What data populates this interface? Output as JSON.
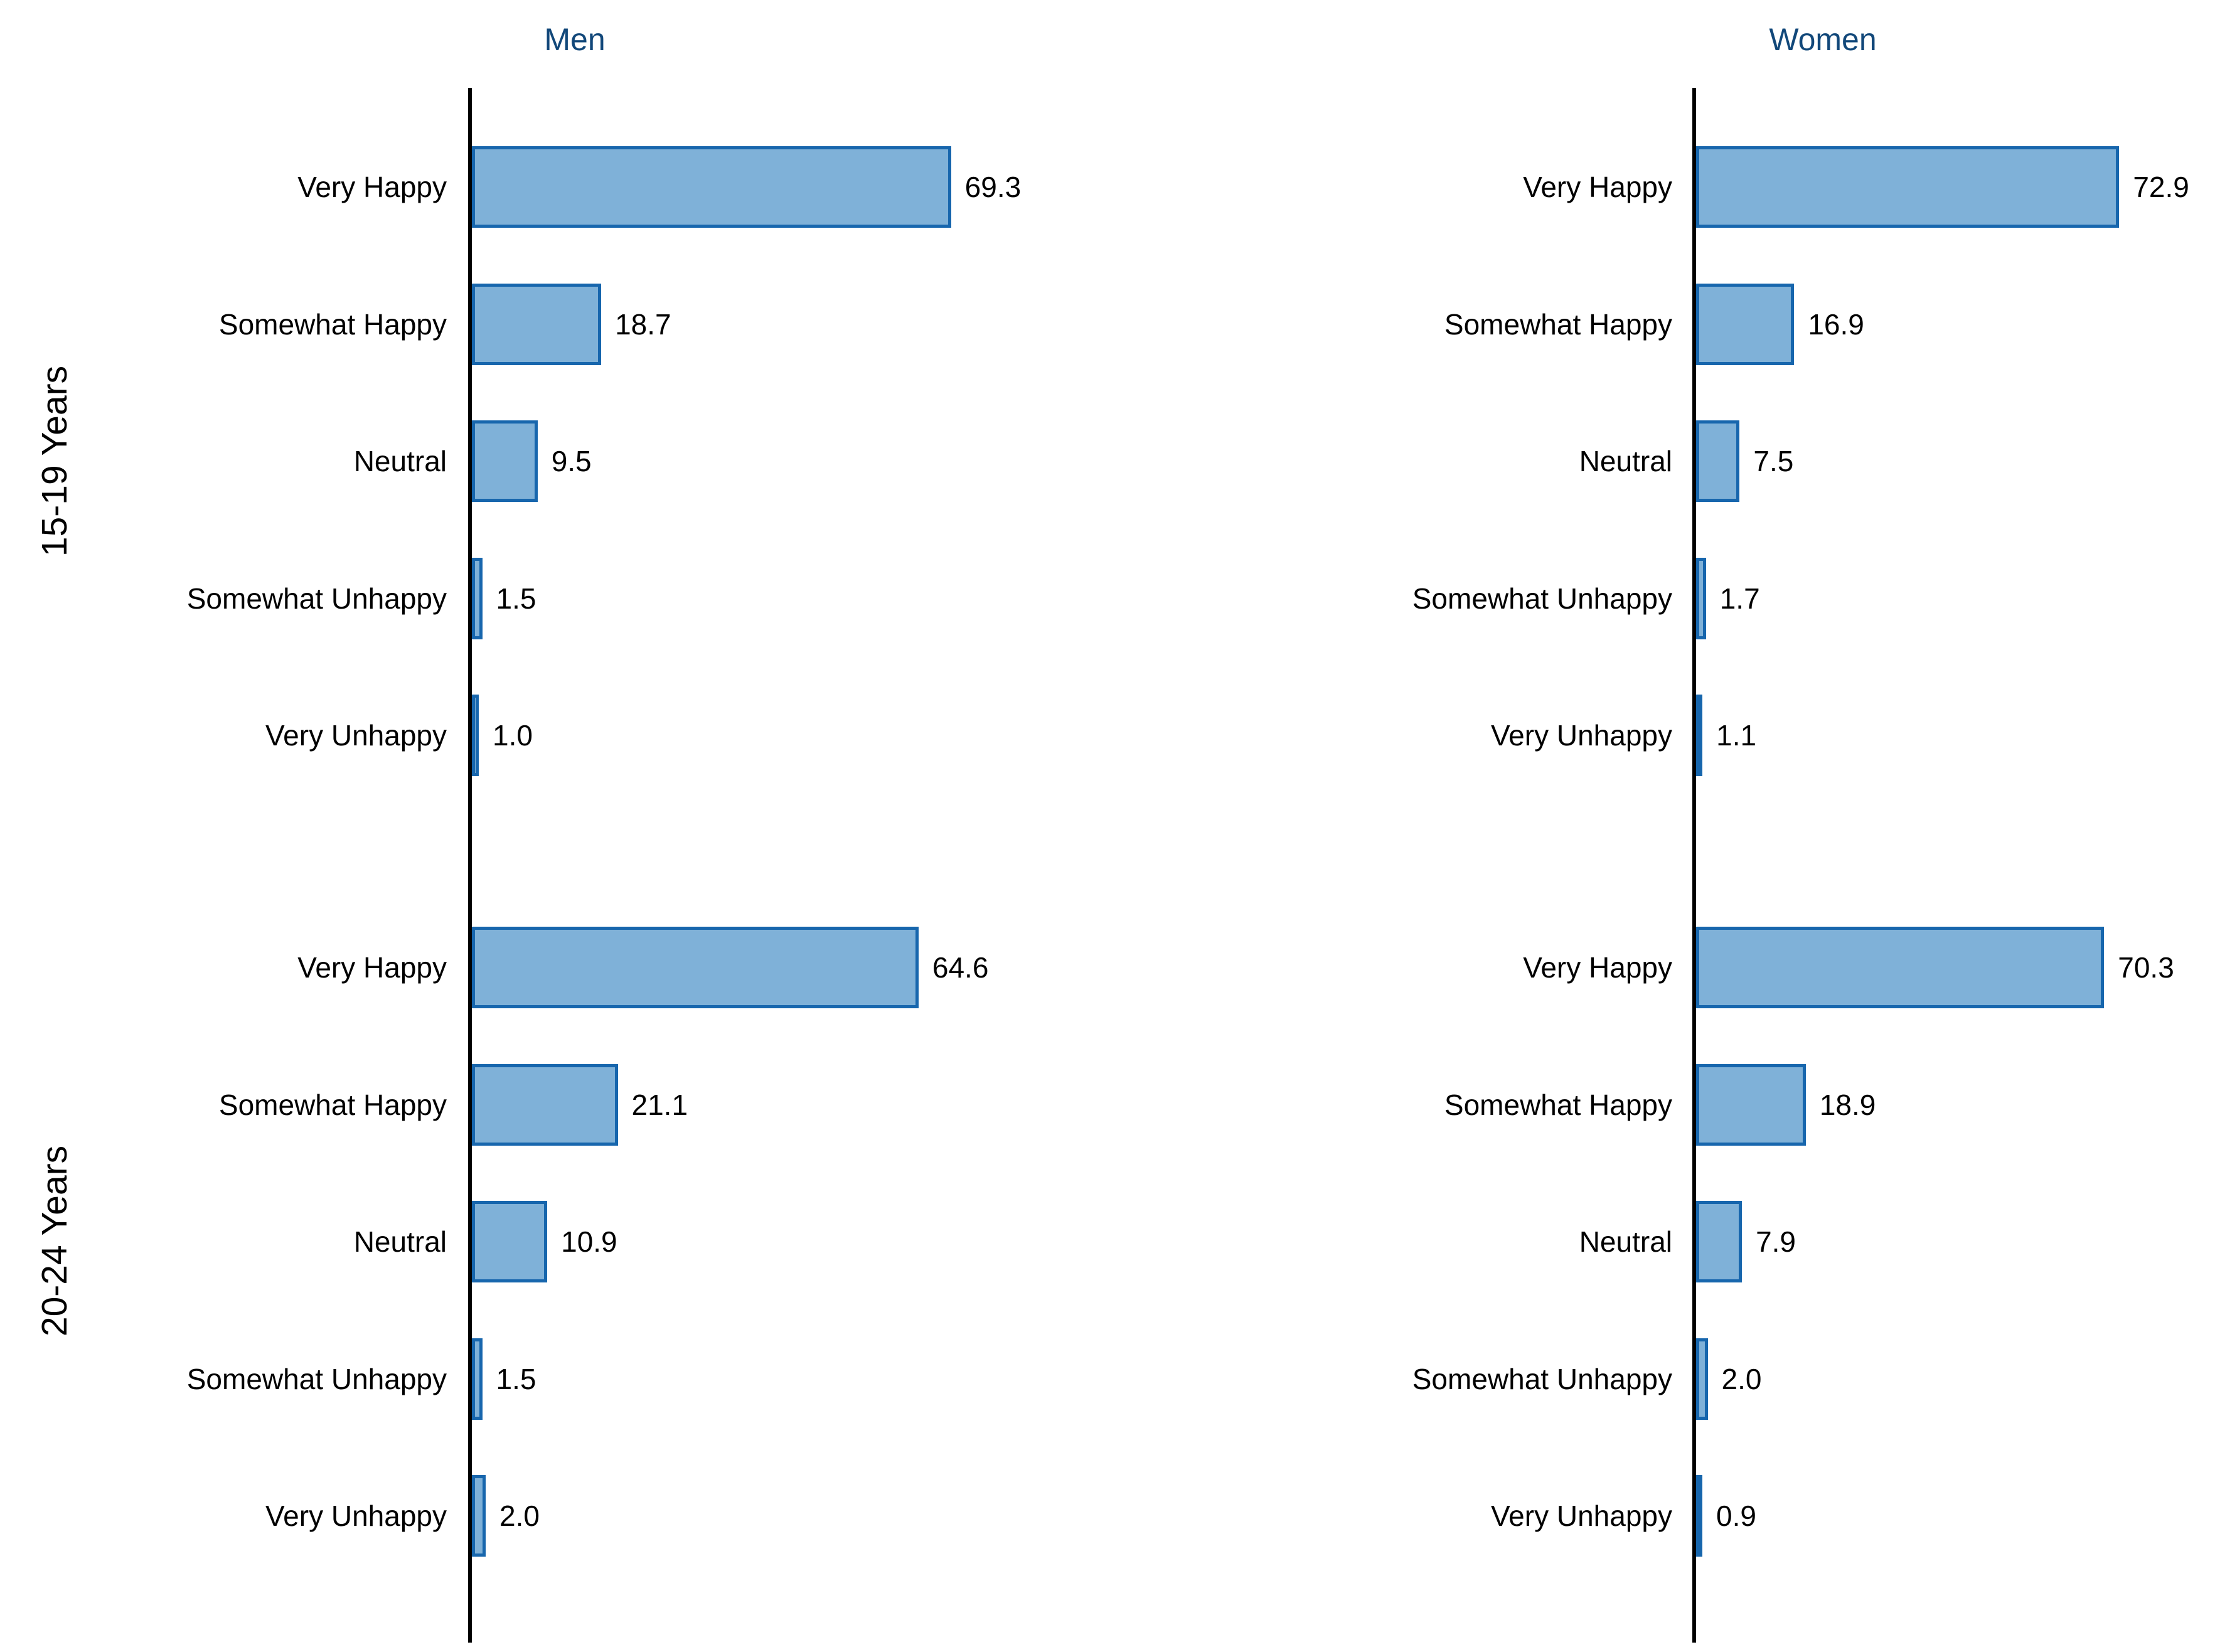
{
  "colors": {
    "bar_fill": "#7FB1D8",
    "bar_border": "#1766AD",
    "axis": "#000000",
    "facet_title": "#12487A",
    "text": "#000000",
    "background": "#FFFFFF"
  },
  "chart_data": {
    "type": "bar",
    "orientation": "horizontal",
    "title": "",
    "xlabel": "",
    "ylabel": "",
    "grid": false,
    "value_labels": true,
    "value_decimals": 1,
    "facet_columns": [
      "Men",
      "Women"
    ],
    "facet_rows": [
      "15-19 Years",
      "20-24 Years"
    ],
    "categories": [
      "Very Happy",
      "Somewhat Happy",
      "Neutral",
      "Somewhat Unhappy",
      "Very Unhappy"
    ],
    "xlim_men": [
      0,
      70
    ],
    "xlim_women": [
      0,
      75
    ],
    "series": [
      {
        "facet_row": "15-19 Years",
        "facet_col": "Men",
        "values": [
          69.3,
          18.7,
          9.5,
          1.5,
          1.0
        ]
      },
      {
        "facet_row": "15-19 Years",
        "facet_col": "Women",
        "values": [
          72.9,
          16.9,
          7.5,
          1.7,
          1.1
        ]
      },
      {
        "facet_row": "20-24 Years",
        "facet_col": "Men",
        "values": [
          64.6,
          21.1,
          10.9,
          1.5,
          2.0
        ]
      },
      {
        "facet_row": "20-24 Years",
        "facet_col": "Women",
        "values": [
          70.3,
          18.9,
          7.9,
          2.0,
          0.9
        ]
      }
    ]
  }
}
